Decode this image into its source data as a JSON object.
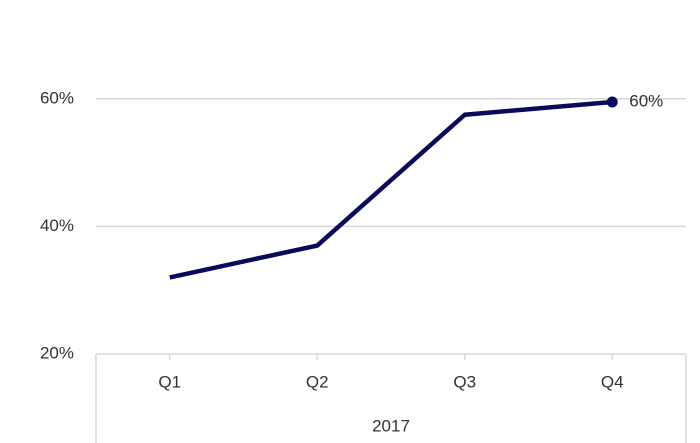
{
  "chart_data": {
    "type": "line",
    "categories": [
      "Q1",
      "Q2",
      "Q3",
      "Q4"
    ],
    "x_group": "2017",
    "series": [
      {
        "name": null,
        "color": "#0a0a5c",
        "values": [
          32,
          37,
          57.5,
          59.5
        ],
        "value_labels": [
          null,
          null,
          null,
          "60%"
        ]
      }
    ],
    "ylim": [
      20,
      70
    ],
    "yticks": [
      {
        "value": 20,
        "label": "20%"
      },
      {
        "value": 40,
        "label": "40%"
      },
      {
        "value": 60,
        "label": "60%"
      }
    ],
    "grid": true
  }
}
